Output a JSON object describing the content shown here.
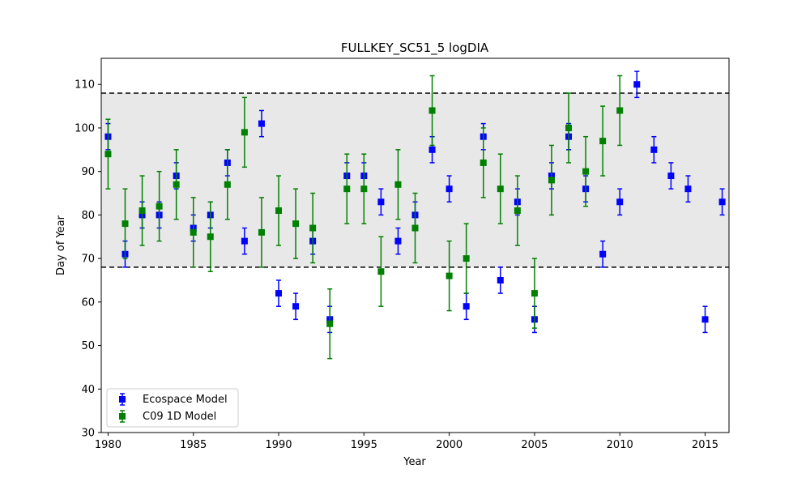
{
  "chart_data": {
    "type": "scatter",
    "title": "FULLKEY_SC51_5 logDIA",
    "xlabel": "Year",
    "ylabel": "Day of Year",
    "xlim": [
      1979.6,
      2016.4
    ],
    "ylim": [
      30,
      116
    ],
    "xticks": [
      1980,
      1985,
      1990,
      1995,
      2000,
      2005,
      2010,
      2015
    ],
    "yticks": [
      30,
      40,
      50,
      60,
      70,
      80,
      90,
      100,
      110
    ],
    "band": {
      "lower": 68,
      "upper": 108,
      "color": "#e8e8e8"
    },
    "legend_position": "bottom-left",
    "series": [
      {
        "name": "Ecospace Model",
        "color": "#0000ff",
        "x": [
          1980,
          1981,
          1982,
          1983,
          1984,
          1985,
          1986,
          1987,
          1988,
          1989,
          1990,
          1991,
          1992,
          1993,
          1994,
          1995,
          1996,
          1997,
          1998,
          1999,
          2000,
          2001,
          2002,
          2003,
          2004,
          2005,
          2006,
          2007,
          2008,
          2009,
          2010,
          2011,
          2012,
          2013,
          2014,
          2015,
          2016
        ],
        "y": [
          98,
          71,
          80,
          80,
          89,
          77,
          80,
          92,
          74,
          101,
          62,
          59,
          74,
          56,
          89,
          89,
          83,
          74,
          80,
          95,
          86,
          59,
          98,
          65,
          83,
          56,
          89,
          98,
          86,
          71,
          83,
          110,
          95,
          89,
          86,
          56,
          83
        ],
        "err": [
          3,
          3,
          3,
          3,
          3,
          3,
          3,
          3,
          3,
          3,
          3,
          3,
          3,
          3,
          3,
          3,
          3,
          3,
          3,
          3,
          3,
          3,
          3,
          3,
          3,
          3,
          3,
          3,
          3,
          3,
          3,
          3,
          3,
          3,
          3,
          3,
          3
        ]
      },
      {
        "name": "C09 1D Model",
        "color": "#008000",
        "x": [
          1980,
          1981,
          1982,
          1983,
          1984,
          1985,
          1986,
          1987,
          1988,
          1989,
          1990,
          1991,
          1992,
          1993,
          1994,
          1995,
          1996,
          1997,
          1998,
          1999,
          2000,
          2001,
          2002,
          2003,
          2004,
          2005,
          2006,
          2007,
          2008,
          2009,
          2010
        ],
        "y": [
          94,
          78,
          81,
          82,
          87,
          76,
          75,
          87,
          99,
          76,
          81,
          78,
          77,
          55,
          86,
          86,
          67,
          87,
          77,
          104,
          66,
          70,
          92,
          86,
          81,
          62,
          88,
          100,
          90,
          97,
          104
        ],
        "err": [
          8,
          8,
          8,
          8,
          8,
          8,
          8,
          8,
          8,
          8,
          8,
          8,
          8,
          8,
          8,
          8,
          8,
          8,
          8,
          8,
          8,
          8,
          8,
          8,
          8,
          8,
          8,
          8,
          8,
          8,
          8
        ]
      }
    ]
  }
}
